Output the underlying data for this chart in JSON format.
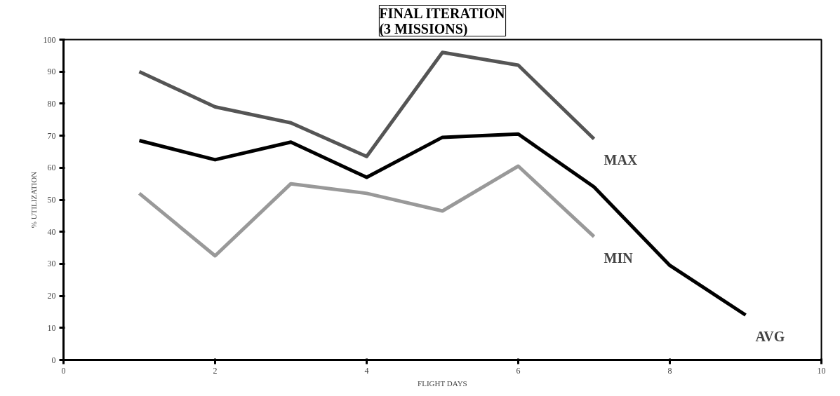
{
  "chart_data": {
    "type": "line",
    "title": "FINAL ITERATION\n(3 MISSIONS)",
    "xlabel": "FLIGHT DAYS",
    "ylabel": "% UTILIZATION",
    "xlim": [
      0,
      10
    ],
    "xticks": [
      0,
      2,
      4,
      6,
      8,
      10
    ],
    "ylim": [
      0,
      100
    ],
    "yticks": [
      0,
      10,
      20,
      30,
      40,
      50,
      60,
      70,
      80,
      90,
      100
    ],
    "grid": false,
    "marker": "none",
    "line_style": "solid",
    "series": [
      {
        "name": "MAX",
        "color": "#555555",
        "x": [
          1,
          2,
          3,
          4,
          5,
          6,
          7
        ],
        "values": [
          90,
          79,
          74,
          63.5,
          96,
          92,
          69
        ]
      },
      {
        "name": "AVG",
        "color": "#000000",
        "x": [
          1,
          2,
          3,
          4,
          5,
          6,
          7,
          8,
          9
        ],
        "values": [
          68.5,
          62.5,
          68,
          57,
          69.5,
          70.5,
          54,
          29.5,
          14
        ]
      },
      {
        "name": "MIN",
        "color": "#999999",
        "x": [
          1,
          2,
          3,
          4,
          5,
          6,
          7
        ],
        "values": [
          52,
          32.5,
          55,
          52,
          46.5,
          60.5,
          38.5
        ]
      }
    ]
  }
}
